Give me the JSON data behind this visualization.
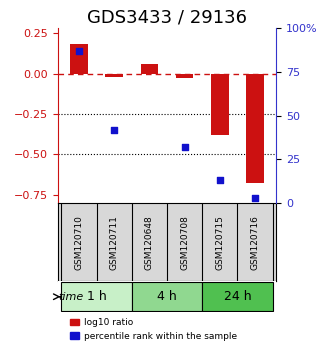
{
  "title": "GDS3433 / 29136",
  "samples": [
    "GSM120710",
    "GSM120711",
    "GSM120648",
    "GSM120708",
    "GSM120715",
    "GSM120716"
  ],
  "groups": [
    {
      "label": "1 h",
      "indices": [
        0,
        1
      ],
      "color": "#c8f0c8"
    },
    {
      "label": "4 h",
      "indices": [
        2,
        3
      ],
      "color": "#90d890"
    },
    {
      "label": "24 h",
      "indices": [
        4,
        5
      ],
      "color": "#50c050"
    }
  ],
  "log10_ratio": [
    0.18,
    -0.02,
    0.06,
    -0.03,
    -0.38,
    -0.68
  ],
  "percentile_rank": [
    87,
    42,
    null,
    32,
    13,
    3
  ],
  "ylim_left": [
    -0.8,
    0.28
  ],
  "ylim_right": [
    0,
    100
  ],
  "yticks_left": [
    0.25,
    0,
    -0.25,
    -0.5,
    -0.75
  ],
  "yticks_right": [
    100,
    75,
    50,
    25,
    0
  ],
  "bar_color": "#cc1111",
  "dot_color": "#1111cc",
  "zero_line_color": "#cc1111",
  "hline_color": "#000000",
  "hlines": [
    -0.25,
    -0.5
  ],
  "background_plot": "#ffffff",
  "title_fontsize": 13,
  "tick_fontsize": 8
}
